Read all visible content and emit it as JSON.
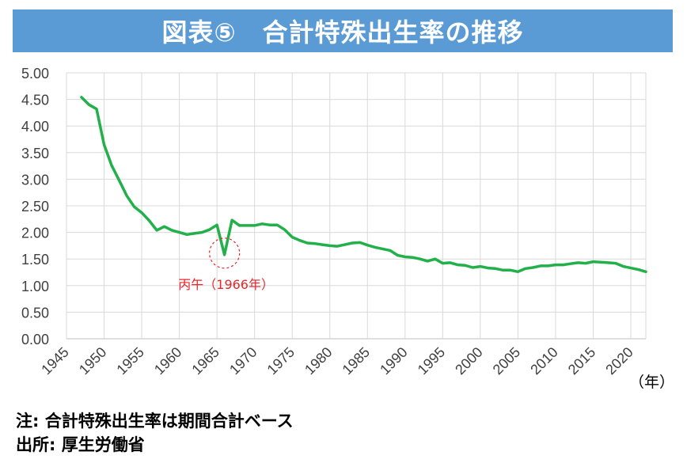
{
  "title": "図表⑤　合計特殊出生率の推移",
  "notes": {
    "note": "注: 合計特殊出生率は期間合計ベース",
    "source": "出所: 厚生労働省"
  },
  "chart_data": {
    "type": "line",
    "title": "図表⑤　合計特殊出生率の推移",
    "xlabel": "（年）",
    "ylabel": "",
    "xlim": [
      1945,
      2022
    ],
    "ylim": [
      0,
      5
    ],
    "y_ticks": [
      "0.00",
      "0.50",
      "1.00",
      "1.50",
      "2.00",
      "2.50",
      "3.00",
      "3.50",
      "4.00",
      "4.50",
      "5.00"
    ],
    "x_ticks": [
      "1945",
      "1950",
      "1955",
      "1960",
      "1965",
      "1970",
      "1975",
      "1980",
      "1985",
      "1990",
      "1995",
      "2000",
      "2005",
      "2010",
      "2015",
      "2020"
    ],
    "grid": true,
    "color": "#22b04a",
    "annotation": {
      "text": "丙午（1966年）",
      "x": 1966,
      "y": 1.58,
      "color": "#e8262b"
    },
    "series": [
      {
        "x": [
          1947,
          1948,
          1949,
          1950,
          1951,
          1952,
          1953,
          1954,
          1955,
          1956,
          1957,
          1958,
          1959,
          1960,
          1961,
          1962,
          1963,
          1964,
          1965,
          1966,
          1967,
          1968,
          1969,
          1970,
          1971,
          1972,
          1973,
          1974,
          1975,
          1976,
          1977,
          1978,
          1979,
          1980,
          1981,
          1982,
          1983,
          1984,
          1985,
          1986,
          1987,
          1988,
          1989,
          1990,
          1991,
          1992,
          1993,
          1994,
          1995,
          1996,
          1997,
          1998,
          1999,
          2000,
          2001,
          2002,
          2003,
          2004,
          2005,
          2006,
          2007,
          2008,
          2009,
          2010,
          2011,
          2012,
          2013,
          2014,
          2015,
          2016,
          2017,
          2018,
          2019,
          2020,
          2021,
          2022
        ],
        "y": [
          4.54,
          4.4,
          4.32,
          3.65,
          3.26,
          2.98,
          2.69,
          2.48,
          2.37,
          2.22,
          2.04,
          2.11,
          2.04,
          2.0,
          1.96,
          1.98,
          2.0,
          2.05,
          2.14,
          1.58,
          2.23,
          2.13,
          2.13,
          2.13,
          2.16,
          2.14,
          2.14,
          2.05,
          1.91,
          1.85,
          1.8,
          1.79,
          1.77,
          1.75,
          1.74,
          1.77,
          1.8,
          1.81,
          1.76,
          1.72,
          1.69,
          1.66,
          1.57,
          1.54,
          1.53,
          1.5,
          1.46,
          1.5,
          1.42,
          1.43,
          1.39,
          1.38,
          1.34,
          1.36,
          1.33,
          1.32,
          1.29,
          1.29,
          1.26,
          1.32,
          1.34,
          1.37,
          1.37,
          1.39,
          1.39,
          1.41,
          1.43,
          1.42,
          1.45,
          1.44,
          1.43,
          1.42,
          1.36,
          1.33,
          1.3,
          1.26
        ]
      }
    ]
  }
}
